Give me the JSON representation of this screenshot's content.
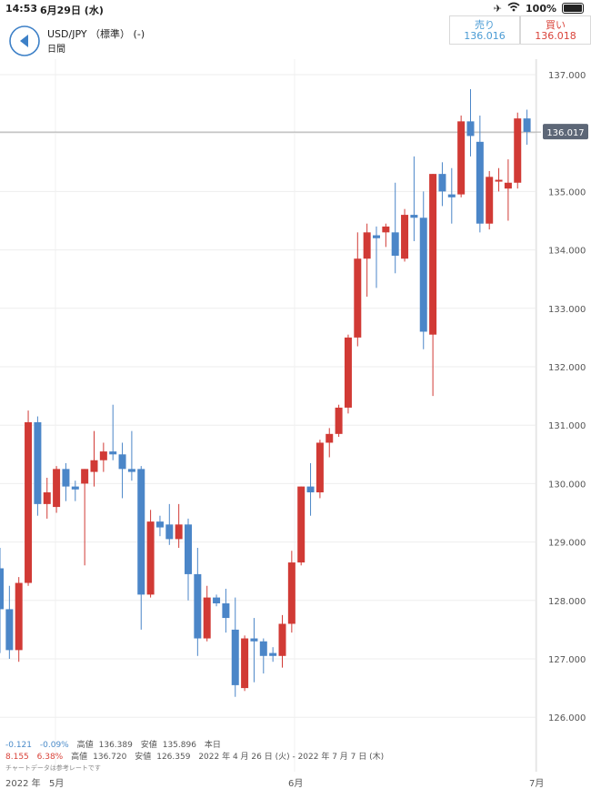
{
  "status": {
    "time": "14:53",
    "date": "6月29日 (水)",
    "battery": "100%"
  },
  "header": {
    "pair": "USD/JPY （標準） (-)",
    "period": "日間"
  },
  "quotes": {
    "sell": {
      "label": "売り",
      "value": "136.016",
      "color": "#4a9bd4"
    },
    "buy": {
      "label": "買い",
      "value": "136.018",
      "color": "#d9433a"
    }
  },
  "chart_data": {
    "type": "candlestick",
    "y_ticks": [
      "137.000",
      "136.000",
      "135.000",
      "134.000",
      "133.000",
      "132.000",
      "131.000",
      "130.000",
      "129.000",
      "128.000",
      "127.000",
      "126.000"
    ],
    "current_price": "136.017",
    "x_labels": [
      "2022 年",
      "5月",
      "6月",
      "7月"
    ],
    "colors": {
      "up": "#d13a35",
      "down": "#4b86c8"
    },
    "candles": [
      {
        "o": 128.55,
        "h": 128.9,
        "l": 127.1,
        "c": 127.85
      },
      {
        "o": 127.85,
        "h": 128.25,
        "l": 127.0,
        "c": 127.15
      },
      {
        "o": 127.15,
        "h": 128.4,
        "l": 126.95,
        "c": 128.3
      },
      {
        "o": 128.3,
        "h": 131.25,
        "l": 128.25,
        "c": 131.05
      },
      {
        "o": 131.05,
        "h": 131.15,
        "l": 129.45,
        "c": 129.65
      },
      {
        "o": 129.65,
        "h": 130.1,
        "l": 129.4,
        "c": 129.85
      },
      {
        "o": 129.6,
        "h": 130.3,
        "l": 129.5,
        "c": 130.25
      },
      {
        "o": 130.25,
        "h": 130.35,
        "l": 129.7,
        "c": 129.95
      },
      {
        "o": 129.95,
        "h": 130.05,
        "l": 129.7,
        "c": 129.9
      },
      {
        "o": 130.0,
        "h": 130.25,
        "l": 128.6,
        "c": 130.25
      },
      {
        "o": 130.2,
        "h": 130.9,
        "l": 129.95,
        "c": 130.4
      },
      {
        "o": 130.4,
        "h": 130.7,
        "l": 130.2,
        "c": 130.55
      },
      {
        "o": 130.55,
        "h": 131.35,
        "l": 130.4,
        "c": 130.5
      },
      {
        "o": 130.5,
        "h": 130.7,
        "l": 129.75,
        "c": 130.25
      },
      {
        "o": 130.25,
        "h": 130.9,
        "l": 130.05,
        "c": 130.2
      },
      {
        "o": 130.25,
        "h": 130.3,
        "l": 127.5,
        "c": 128.1
      },
      {
        "o": 128.1,
        "h": 129.55,
        "l": 128.05,
        "c": 129.35
      },
      {
        "o": 129.35,
        "h": 129.45,
        "l": 129.1,
        "c": 129.25
      },
      {
        "o": 129.3,
        "h": 129.65,
        "l": 128.95,
        "c": 129.05
      },
      {
        "o": 129.05,
        "h": 129.65,
        "l": 128.9,
        "c": 129.3
      },
      {
        "o": 129.3,
        "h": 129.4,
        "l": 128.0,
        "c": 128.45
      },
      {
        "o": 128.45,
        "h": 128.9,
        "l": 127.05,
        "c": 127.35
      },
      {
        "o": 127.35,
        "h": 128.25,
        "l": 127.3,
        "c": 128.05
      },
      {
        "o": 128.05,
        "h": 128.1,
        "l": 127.9,
        "c": 127.95
      },
      {
        "o": 127.95,
        "h": 128.2,
        "l": 127.45,
        "c": 127.7
      },
      {
        "o": 127.5,
        "h": 128.05,
        "l": 126.35,
        "c": 126.55
      },
      {
        "o": 126.5,
        "h": 127.4,
        "l": 126.45,
        "c": 127.35
      },
      {
        "o": 127.35,
        "h": 127.7,
        "l": 126.6,
        "c": 127.3
      },
      {
        "o": 127.3,
        "h": 127.35,
        "l": 126.75,
        "c": 127.05
      },
      {
        "o": 127.1,
        "h": 127.2,
        "l": 126.95,
        "c": 127.05
      },
      {
        "o": 127.05,
        "h": 127.75,
        "l": 126.85,
        "c": 127.6
      },
      {
        "o": 127.6,
        "h": 128.85,
        "l": 127.45,
        "c": 128.65
      },
      {
        "o": 128.65,
        "h": 129.95,
        "l": 128.6,
        "c": 129.95
      },
      {
        "o": 129.95,
        "h": 130.35,
        "l": 129.45,
        "c": 129.85
      },
      {
        "o": 129.85,
        "h": 130.75,
        "l": 129.75,
        "c": 130.7
      },
      {
        "o": 130.7,
        "h": 130.95,
        "l": 130.45,
        "c": 130.85
      },
      {
        "o": 130.85,
        "h": 131.35,
        "l": 130.8,
        "c": 131.3
      },
      {
        "o": 131.3,
        "h": 132.55,
        "l": 131.2,
        "c": 132.5
      },
      {
        "o": 132.5,
        "h": 134.3,
        "l": 132.35,
        "c": 133.85
      },
      {
        "o": 133.85,
        "h": 134.45,
        "l": 133.2,
        "c": 134.3
      },
      {
        "o": 134.25,
        "h": 134.4,
        "l": 133.35,
        "c": 134.2
      },
      {
        "o": 134.3,
        "h": 134.45,
        "l": 134.05,
        "c": 134.4
      },
      {
        "o": 134.3,
        "h": 135.15,
        "l": 133.6,
        "c": 133.9
      },
      {
        "o": 133.85,
        "h": 134.7,
        "l": 133.8,
        "c": 134.6
      },
      {
        "o": 134.6,
        "h": 135.6,
        "l": 134.15,
        "c": 134.55
      },
      {
        "o": 134.55,
        "h": 135.0,
        "l": 132.3,
        "c": 132.6
      },
      {
        "o": 132.55,
        "h": 135.3,
        "l": 131.5,
        "c": 135.3
      },
      {
        "o": 135.3,
        "h": 135.5,
        "l": 134.75,
        "c": 135.0
      },
      {
        "o": 134.95,
        "h": 135.4,
        "l": 134.45,
        "c": 134.9
      },
      {
        "o": 134.95,
        "h": 136.3,
        "l": 134.9,
        "c": 136.2
      },
      {
        "o": 136.2,
        "h": 136.75,
        "l": 135.6,
        "c": 135.95
      },
      {
        "o": 135.85,
        "h": 136.3,
        "l": 134.3,
        "c": 134.45
      },
      {
        "o": 134.45,
        "h": 135.35,
        "l": 134.35,
        "c": 135.25
      },
      {
        "o": 135.2,
        "h": 135.4,
        "l": 135.0,
        "c": 135.2
      },
      {
        "o": 135.05,
        "h": 135.55,
        "l": 134.5,
        "c": 135.15
      },
      {
        "o": 135.15,
        "h": 136.35,
        "l": 135.05,
        "c": 136.25
      },
      {
        "o": 136.25,
        "h": 136.4,
        "l": 135.8,
        "c": 136.02
      }
    ]
  },
  "indicators": {
    "row1": {
      "change": "-0.121",
      "pct": "-0.09%",
      "high_label": "高値",
      "high": "136.389",
      "low_label": "安値",
      "low": "135.896",
      "period": "本日"
    },
    "row2": {
      "change": "8.155",
      "pct": "6.38%",
      "high_label": "高値",
      "high": "136.720",
      "low_label": "安値",
      "low": "126.359",
      "period": "2022 年 4 月 26 日 (火) - 2022 年 7 月 7 日 (木)"
    },
    "note": "チャートデータは参考レートです"
  }
}
